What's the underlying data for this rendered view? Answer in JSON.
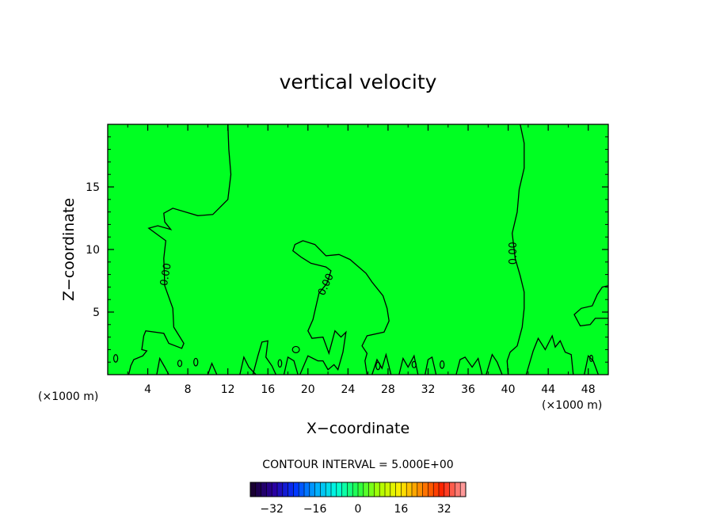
{
  "chart_data": {
    "type": "heatmap",
    "title": "vertical velocity",
    "xlabel": "X−coordinate",
    "ylabel": "Z−coordinate",
    "x_unit": "(×1000 m)",
    "xlim": [
      0,
      50
    ],
    "ylim": [
      0,
      20
    ],
    "x_ticks": [
      4,
      8,
      12,
      16,
      20,
      24,
      28,
      32,
      36,
      40,
      44,
      48
    ],
    "y_ticks": [
      5,
      10,
      15
    ],
    "field_color": "#00ff22",
    "contour_line_color": "#000000",
    "contour_interval_text": "CONTOUR INTERVAL = 5.000E+00",
    "contour_labels": [
      {
        "text": "0.00",
        "x": 5.8,
        "y": 8.0,
        "rotation": -80
      },
      {
        "text": "0.00",
        "x": 21.8,
        "y": 7.2,
        "rotation": -65
      },
      {
        "text": "0.00",
        "x": 40.5,
        "y": 9.7,
        "rotation": -90
      }
    ],
    "zero_contours": [
      [
        [
          12,
          20
        ],
        [
          12.1,
          18
        ],
        [
          12.3,
          16
        ],
        [
          12,
          14
        ],
        [
          10.5,
          12.8
        ],
        [
          9,
          12.7
        ],
        [
          6.5,
          13.3
        ],
        [
          5.6,
          12.9
        ],
        [
          5.7,
          12.2
        ],
        [
          6.3,
          11.6
        ],
        [
          5,
          11.9
        ],
        [
          4.1,
          11.7
        ],
        [
          5.8,
          10.7
        ],
        [
          5.6,
          9.3
        ],
        [
          5.7,
          7.1
        ],
        [
          6.5,
          5.3
        ],
        [
          6.6,
          3.8
        ],
        [
          7.6,
          2.5
        ],
        [
          7.4,
          2.1
        ],
        [
          6.1,
          2.5
        ],
        [
          5.6,
          3.3
        ],
        [
          3.8,
          3.5
        ],
        [
          3.6,
          3.1
        ],
        [
          3.4,
          2.0
        ],
        [
          3.9,
          1.9
        ],
        [
          3.5,
          1.5
        ],
        [
          2.6,
          1.2
        ],
        [
          2.3,
          0.7
        ],
        [
          2.1,
          0
        ]
      ],
      [
        [
          19.2,
          0
        ],
        [
          20,
          1.5
        ],
        [
          21,
          1.1
        ],
        [
          21.5,
          1.1
        ],
        [
          22,
          0.4
        ],
        [
          22.6,
          0.8
        ],
        [
          23,
          0.4
        ],
        [
          23.5,
          1.8
        ],
        [
          23.8,
          3.4
        ],
        [
          23.3,
          3.0
        ],
        [
          22.7,
          3.5
        ],
        [
          22.1,
          1.7
        ],
        [
          21.5,
          3.0
        ],
        [
          20.4,
          2.9
        ],
        [
          20,
          3.5
        ],
        [
          20.5,
          4.4
        ],
        [
          21.1,
          6.5
        ],
        [
          21.9,
          7.3
        ],
        [
          22.3,
          8.3
        ],
        [
          21.8,
          8.6
        ],
        [
          20.3,
          8.9
        ],
        [
          19.3,
          9.4
        ],
        [
          18.5,
          9.9
        ],
        [
          18.7,
          10.4
        ],
        [
          19.5,
          10.7
        ],
        [
          20.7,
          10.4
        ],
        [
          21.8,
          9.5
        ],
        [
          23.1,
          9.6
        ],
        [
          24.2,
          9.2
        ],
        [
          25.8,
          8.1
        ],
        [
          26.4,
          7.4
        ],
        [
          27.5,
          6.3
        ],
        [
          27.9,
          5.3
        ],
        [
          28.1,
          4.3
        ],
        [
          27.6,
          3.4
        ],
        [
          25.9,
          3.1
        ],
        [
          25.4,
          2.3
        ],
        [
          25.9,
          1.7
        ],
        [
          25.7,
          1.1
        ],
        [
          25.9,
          0
        ]
      ],
      [
        [
          41.2,
          20
        ],
        [
          41.6,
          18.5
        ],
        [
          41.6,
          16.5
        ],
        [
          41.1,
          14.8
        ],
        [
          40.9,
          13
        ],
        [
          40.4,
          11.3
        ],
        [
          40.7,
          9.3
        ],
        [
          41.2,
          7.9
        ],
        [
          41.6,
          6.6
        ],
        [
          41.6,
          5.3
        ],
        [
          41.4,
          3.8
        ],
        [
          40.9,
          2.3
        ],
        [
          40.2,
          1.8
        ],
        [
          39.9,
          1.1
        ],
        [
          40,
          0
        ]
      ],
      [
        [
          50,
          7.1
        ],
        [
          49.4,
          7.0
        ],
        [
          48.9,
          6.4
        ],
        [
          48.4,
          5.5
        ],
        [
          47.3,
          5.3
        ],
        [
          46.6,
          4.8
        ],
        [
          47.2,
          3.9
        ],
        [
          48.2,
          4.0
        ],
        [
          48.7,
          4.5
        ],
        [
          50,
          4.5
        ]
      ],
      [
        [
          41.8,
          0
        ],
        [
          42.5,
          1.9
        ],
        [
          43.0,
          2.9
        ],
        [
          43.7,
          2.0
        ],
        [
          44.4,
          3.1
        ],
        [
          44.7,
          2.2
        ],
        [
          45.2,
          2.7
        ],
        [
          45.7,
          1.8
        ],
        [
          46.3,
          1.6
        ],
        [
          46.5,
          0
        ]
      ],
      [
        [
          13.2,
          0
        ],
        [
          13.6,
          1.4
        ],
        [
          14.1,
          0.6
        ],
        [
          14.8,
          0
        ]
      ],
      [
        [
          14.5,
          0
        ],
        [
          15.0,
          1.5
        ],
        [
          15.4,
          2.6
        ],
        [
          16.0,
          2.7
        ],
        [
          15.8,
          1.4
        ],
        [
          16.4,
          0.7
        ],
        [
          16.8,
          0
        ]
      ],
      [
        [
          17.6,
          0
        ],
        [
          18.0,
          1.4
        ],
        [
          18.6,
          1.1
        ],
        [
          19.0,
          0
        ]
      ],
      [
        [
          26.4,
          0
        ],
        [
          26.9,
          1.2
        ],
        [
          27.4,
          0.5
        ],
        [
          27.8,
          1.6
        ],
        [
          28.3,
          0
        ]
      ],
      [
        [
          29.1,
          0
        ],
        [
          29.5,
          1.3
        ],
        [
          30.0,
          0.6
        ],
        [
          30.6,
          1.5
        ],
        [
          31.0,
          0
        ]
      ],
      [
        [
          31.7,
          0
        ],
        [
          32.0,
          1.2
        ],
        [
          32.4,
          1.4
        ],
        [
          32.8,
          0
        ]
      ],
      [
        [
          34.8,
          0
        ],
        [
          35.2,
          1.2
        ],
        [
          35.7,
          1.4
        ],
        [
          36.4,
          0.6
        ],
        [
          37.0,
          1.3
        ],
        [
          37.4,
          0
        ]
      ],
      [
        [
          37.8,
          0
        ],
        [
          38.4,
          1.6
        ],
        [
          38.9,
          1.0
        ],
        [
          39.4,
          0
        ]
      ],
      [
        [
          4.9,
          0
        ],
        [
          5.2,
          1.3
        ],
        [
          5.7,
          0.6
        ],
        [
          6.1,
          0
        ]
      ],
      [
        [
          10.0,
          0
        ],
        [
          10.4,
          0.9
        ],
        [
          10.9,
          0
        ]
      ],
      [
        [
          47.6,
          0
        ],
        [
          48.0,
          1.5
        ],
        [
          48.5,
          1.1
        ],
        [
          49.0,
          0
        ]
      ]
    ],
    "zero_rings": [
      {
        "x": 0.8,
        "y": 1.3,
        "rx": 0.2,
        "ry": 0.3
      },
      {
        "x": 7.2,
        "y": 0.9,
        "rx": 0.2,
        "ry": 0.25
      },
      {
        "x": 8.8,
        "y": 1.0,
        "rx": 0.2,
        "ry": 0.3
      },
      {
        "x": 18.8,
        "y": 2.0,
        "rx": 0.35,
        "ry": 0.25
      },
      {
        "x": 17.2,
        "y": 0.9,
        "rx": 0.18,
        "ry": 0.3
      },
      {
        "x": 27.0,
        "y": 0.7,
        "rx": 0.2,
        "ry": 0.3
      },
      {
        "x": 30.6,
        "y": 0.8,
        "rx": 0.2,
        "ry": 0.25
      },
      {
        "x": 33.4,
        "y": 0.8,
        "rx": 0.2,
        "ry": 0.3
      },
      {
        "x": 48.3,
        "y": 1.3,
        "rx": 0.15,
        "ry": 0.25
      }
    ],
    "colorbar": {
      "ticks": [
        -32,
        -16,
        0,
        16,
        32
      ],
      "range": [
        -40,
        40
      ],
      "segments": 40,
      "stops": [
        "#1a0033",
        "#2a00a0",
        "#0033ff",
        "#00aaff",
        "#00ffdd",
        "#22ff44",
        "#aaff00",
        "#ffee00",
        "#ff8800",
        "#ff2200",
        "#ff9999"
      ]
    }
  }
}
